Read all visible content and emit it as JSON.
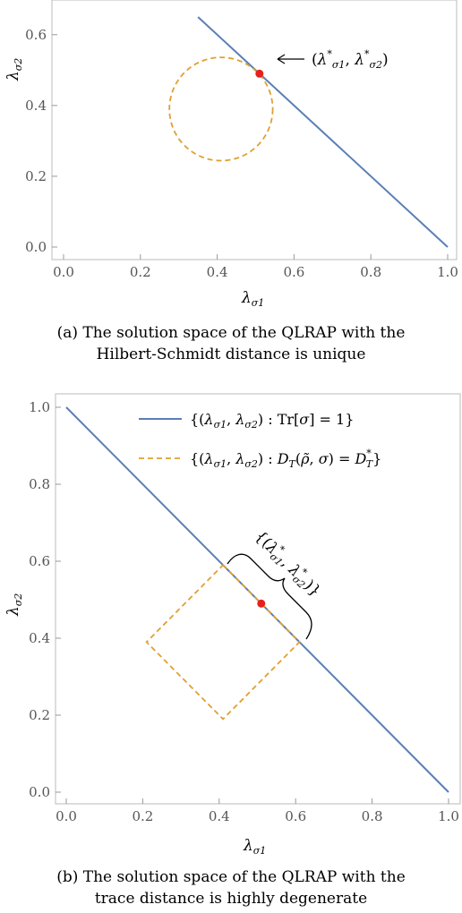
{
  "chart_data": [
    {
      "type": "line",
      "caption_line1": "(a) The solution space of the QLRAP with the",
      "caption_line2": "Hilbert-Schmidt distance is unique",
      "xlabel": "λσ1",
      "ylabel": "λσ2",
      "xlim": [
        0.0,
        1.0
      ],
      "ylim": [
        0.0,
        0.65
      ],
      "xticks": [
        "0.0",
        "0.2",
        "0.4",
        "0.6",
        "0.8",
        "1.0"
      ],
      "yticks": [
        "0.0",
        "0.2",
        "0.4",
        "0.6"
      ],
      "series": [
        {
          "style": "solid",
          "color": "#5a7fb5",
          "x": [
            0.0,
            1.0
          ],
          "y": [
            1.0,
            0.0
          ]
        },
        {
          "style": "dashed",
          "color": "#e0a030",
          "shape": "circle",
          "center": [
            0.41,
            0.39
          ],
          "radius": 0.14
        }
      ],
      "point": {
        "x": 0.51,
        "y": 0.49,
        "color": "#e8201c"
      },
      "annotation": "(λ*σ1, λ*σ2)"
    },
    {
      "type": "line",
      "caption_line1": "(b) The solution space of the QLRAP with the",
      "caption_line2": "trace distance is highly degenerate",
      "xlabel": "λσ1",
      "ylabel": "λσ2",
      "xlim": [
        0.0,
        1.0
      ],
      "ylim": [
        0.0,
        1.0
      ],
      "xticks": [
        "0.0",
        "0.2",
        "0.4",
        "0.6",
        "0.8",
        "1.0"
      ],
      "yticks": [
        "0.0",
        "0.2",
        "0.4",
        "0.6",
        "0.8",
        "1.0"
      ],
      "legend": [
        "{(λσ1, λσ2) : Tr[σ] = 1}",
        "{(λσ1, λσ2) : DT(ρ̃, σ) = D*T}"
      ],
      "series": [
        {
          "style": "solid",
          "color": "#5a7fb5",
          "x": [
            0.0,
            1.0
          ],
          "y": [
            1.0,
            0.0
          ]
        },
        {
          "style": "dashed",
          "color": "#e0a030",
          "shape": "diamond",
          "center": [
            0.41,
            0.39
          ],
          "radius": 0.2
        }
      ],
      "point": {
        "x": 0.51,
        "y": 0.49,
        "color": "#e8201c"
      },
      "annotation": "{(λ*σ1, λ*σ2)}"
    }
  ]
}
